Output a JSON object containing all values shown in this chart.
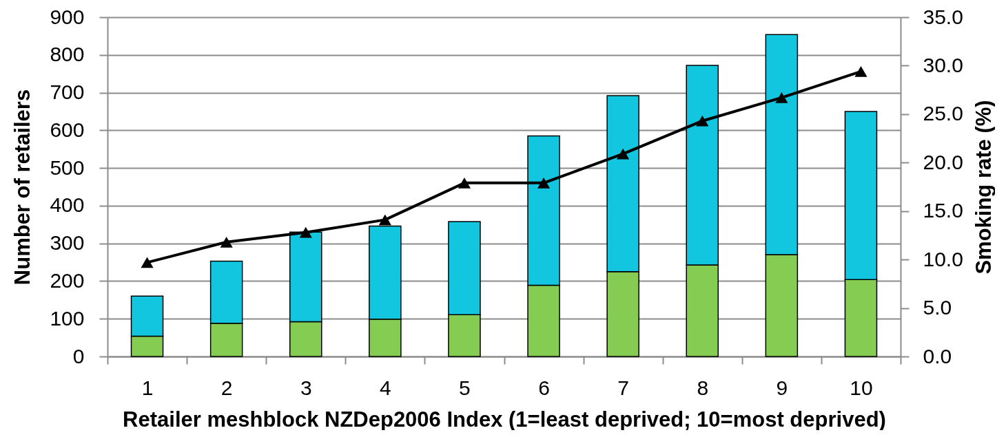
{
  "chart_data": {
    "type": "bar",
    "stacked": true,
    "categories": [
      "1",
      "2",
      "3",
      "4",
      "5",
      "6",
      "7",
      "8",
      "9",
      "10"
    ],
    "xlabel": "Retailer meshblock NZDep2006 Index (1=least deprived; 10=most deprived)",
    "ylabel": "Number of retailers",
    "y2label": "Smoking rate (%)",
    "ylim": [
      0,
      900
    ],
    "yticks": [
      0,
      100,
      200,
      300,
      400,
      500,
      600,
      700,
      800,
      900
    ],
    "y2lim": [
      0,
      35
    ],
    "y2ticks": [
      {
        "value": 0,
        "label": "0.0"
      },
      {
        "value": 5,
        "label": "5.0"
      },
      {
        "value": 10,
        "label": "10.0"
      },
      {
        "value": 15,
        "label": "15.0"
      },
      {
        "value": 20,
        "label": "20.0"
      },
      {
        "value": 25,
        "label": "25.0"
      },
      {
        "value": 30,
        "label": "30.0"
      },
      {
        "value": 35,
        "label": "35.0"
      }
    ],
    "grid": "y",
    "series": [
      {
        "color": "#85cc52",
        "values": [
          54,
          88,
          92,
          99,
          111,
          189,
          225,
          243,
          270,
          204
        ]
      },
      {
        "color": "#12c6df",
        "values": [
          106,
          165,
          238,
          247,
          247,
          396,
          467,
          529,
          584,
          446
        ]
      },
      {
        "type": "line",
        "axis": "y2",
        "color": "#000000",
        "marker": "triangle",
        "line_style": "solid",
        "values": [
          9.7,
          11.8,
          12.8,
          14.1,
          17.9,
          17.9,
          20.9,
          24.3,
          26.7,
          29.4
        ]
      }
    ]
  }
}
